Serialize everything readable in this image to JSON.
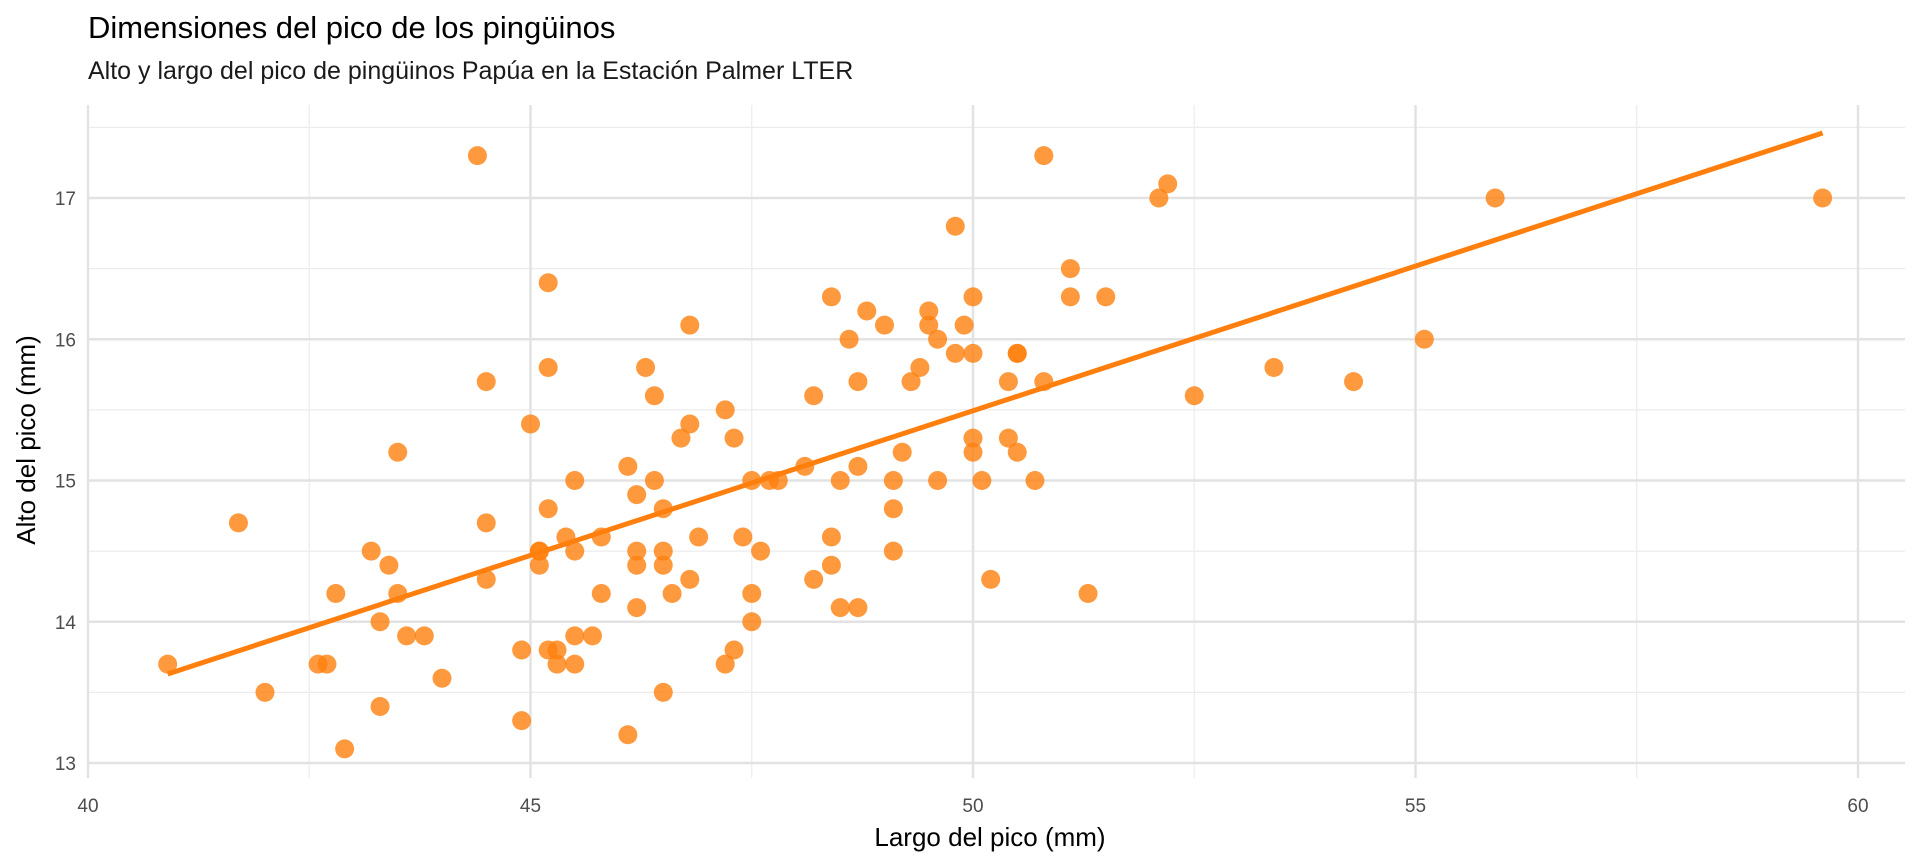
{
  "chart_data": {
    "type": "scatter",
    "title": "Dimensiones del pico de los pingüinos",
    "subtitle": "Alto y largo del pico de pingüinos Papúa en la Estación Palmer LTER",
    "xlabel": "Largo del pico (mm)",
    "ylabel": "Alto del pico (mm)",
    "xlim": [
      40,
      60.5
    ],
    "ylim": [
      12.9,
      17.65
    ],
    "x_ticks": [
      "40",
      "45",
      "50",
      "55",
      "60"
    ],
    "y_ticks": [
      "13",
      "14",
      "15",
      "16",
      "17"
    ],
    "grid": true,
    "legend": "none",
    "point_color": "#FF7F0E",
    "line_color": "#FF7F0E",
    "trend_line": {
      "x": [
        40.9,
        59.6
      ],
      "y": [
        13.63,
        17.46
      ]
    },
    "x": [
      40.9,
      41.7,
      42.0,
      42.6,
      42.7,
      42.8,
      42.9,
      43.2,
      43.3,
      43.3,
      43.4,
      43.5,
      43.5,
      43.6,
      43.8,
      44.0,
      44.4,
      44.5,
      44.5,
      44.5,
      44.9,
      44.9,
      45.0,
      45.1,
      45.1,
      45.1,
      45.2,
      45.2,
      45.2,
      45.2,
      45.3,
      45.3,
      45.4,
      45.5,
      45.5,
      45.5,
      45.5,
      45.7,
      45.8,
      45.8,
      46.1,
      46.1,
      46.2,
      46.2,
      46.2,
      46.2,
      46.3,
      46.4,
      46.4,
      46.5,
      46.5,
      46.5,
      46.5,
      46.6,
      46.7,
      46.8,
      46.8,
      46.8,
      46.9,
      47.2,
      47.2,
      47.3,
      47.3,
      47.4,
      47.5,
      47.5,
      47.5,
      47.6,
      47.7,
      47.8,
      48.1,
      48.2,
      48.2,
      48.4,
      48.4,
      48.4,
      48.5,
      48.5,
      48.6,
      48.7,
      48.7,
      48.7,
      48.8,
      49.0,
      49.1,
      49.1,
      49.1,
      49.2,
      49.3,
      49.4,
      49.5,
      49.5,
      49.6,
      49.6,
      49.8,
      49.8,
      49.9,
      50.0,
      50.0,
      50.0,
      50.0,
      50.1,
      50.2,
      50.4,
      50.4,
      50.5,
      50.5,
      50.5,
      50.7,
      50.8,
      50.8,
      51.1,
      51.1,
      51.3,
      51.5,
      52.1,
      52.2,
      52.5,
      53.4,
      54.3,
      55.1,
      55.9,
      59.6
    ],
    "y": [
      13.7,
      14.7,
      13.5,
      13.7,
      13.7,
      14.2,
      13.1,
      14.5,
      14.0,
      13.4,
      14.4,
      14.2,
      15.2,
      13.9,
      13.9,
      13.6,
      17.3,
      14.3,
      15.7,
      14.7,
      13.8,
      13.3,
      15.4,
      14.5,
      14.4,
      14.5,
      16.4,
      15.8,
      14.8,
      13.8,
      13.7,
      13.8,
      14.6,
      15.0,
      14.5,
      13.9,
      13.7,
      13.9,
      14.2,
      14.6,
      15.1,
      13.2,
      14.9,
      14.5,
      14.4,
      14.1,
      15.8,
      15.6,
      15.0,
      14.8,
      14.5,
      14.4,
      13.5,
      14.2,
      15.3,
      16.1,
      15.4,
      14.3,
      14.6,
      15.5,
      13.7,
      15.3,
      13.8,
      14.6,
      15.0,
      14.2,
      14.0,
      14.5,
      15.0,
      15.0,
      15.1,
      15.6,
      14.3,
      16.3,
      14.6,
      14.4,
      15.0,
      14.1,
      16.0,
      15.7,
      15.1,
      14.1,
      16.2,
      16.1,
      15.0,
      14.8,
      14.5,
      15.2,
      15.7,
      15.8,
      16.2,
      16.1,
      16.0,
      15.0,
      16.8,
      15.9,
      16.1,
      16.3,
      15.9,
      15.3,
      15.2,
      15.0,
      14.3,
      15.7,
      15.3,
      15.9,
      15.9,
      15.2,
      15.0,
      17.3,
      15.7,
      16.5,
      16.3,
      14.2,
      16.3,
      17.0,
      17.1,
      15.6,
      15.8,
      15.7,
      16.0,
      17.0,
      17.0
    ]
  }
}
